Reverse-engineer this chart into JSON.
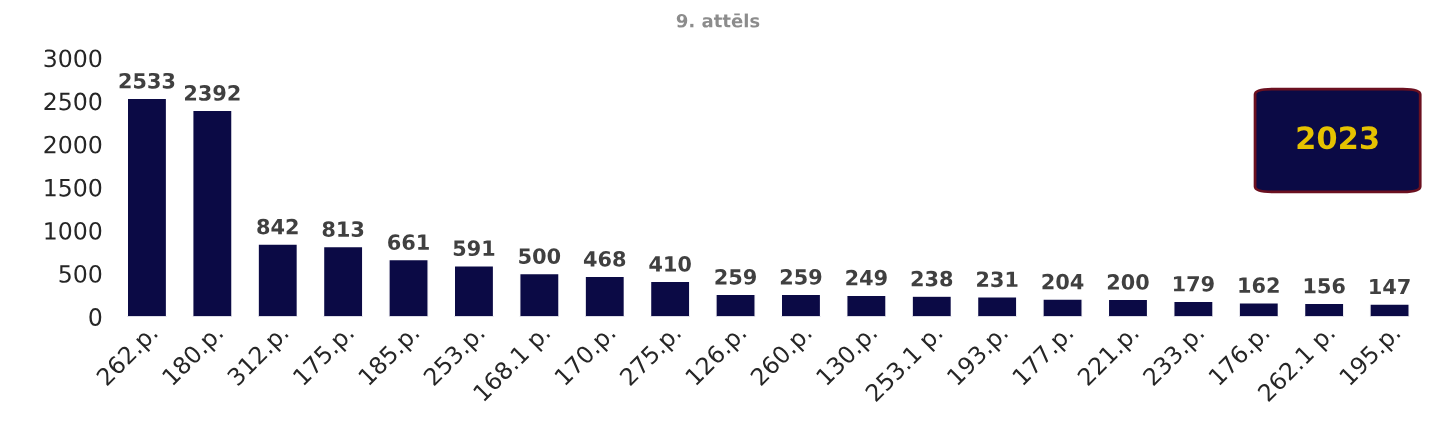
{
  "chart_data": {
    "type": "bar",
    "title": "9. attēls",
    "categories": [
      "262.p.",
      "180.p.",
      "312.p.",
      "175.p.",
      "185.p.",
      "253.p.",
      "168.1 p.",
      "170.p.",
      "275.p.",
      "126.p.",
      "260.p.",
      "130.p.",
      "253.1 p.",
      "193.p.",
      "177.p.",
      "221.p.",
      "233.p.",
      "176.p.",
      "262.1 p.",
      "195.p."
    ],
    "values": [
      2533,
      2392,
      842,
      813,
      661,
      591,
      500,
      468,
      410,
      259,
      259,
      249,
      238,
      231,
      204,
      200,
      179,
      162,
      156,
      147
    ],
    "color": "#0b0a45",
    "ylim": [
      0,
      3000
    ],
    "yticks": [
      0,
      500,
      1000,
      1500,
      2000,
      2500,
      3000
    ],
    "data_labels": true,
    "grid": false,
    "annotations": [
      "2023"
    ]
  }
}
